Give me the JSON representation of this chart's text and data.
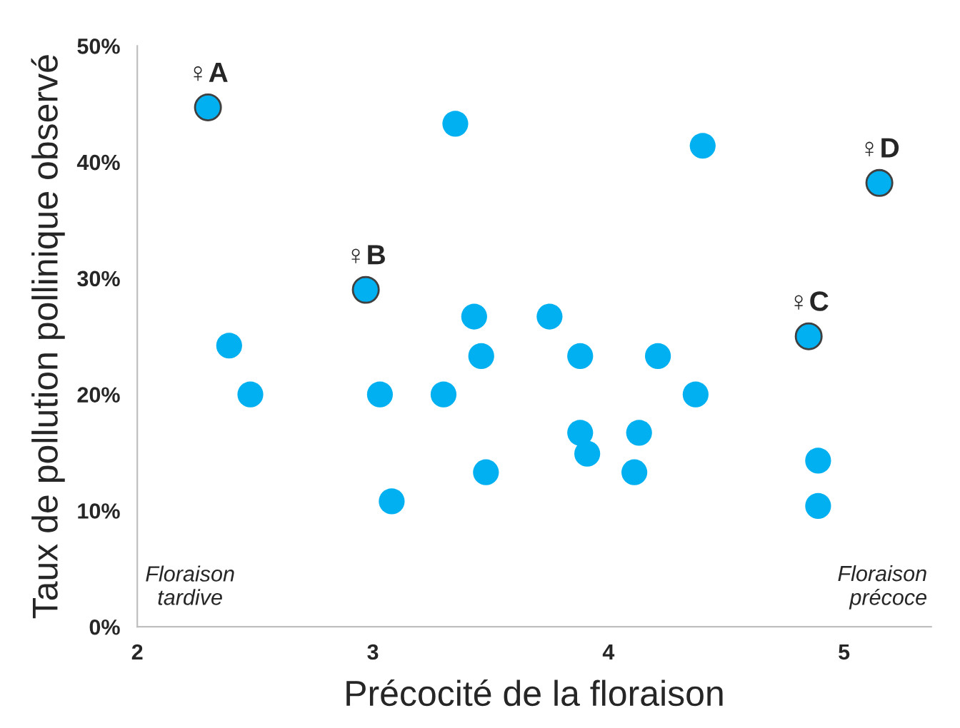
{
  "chart_data": {
    "type": "scatter",
    "xlabel": "Précocité de la floraison",
    "ylabel": "Taux de pollution pollinique observé",
    "xlim": [
      2,
      5.37
    ],
    "ylim": [
      0,
      50
    ],
    "xticks": [
      2,
      3,
      4,
      5
    ],
    "yticks": [
      {
        "value": 0,
        "label": "0%"
      },
      {
        "value": 10,
        "label": "10%"
      },
      {
        "value": 20,
        "label": "20%"
      },
      {
        "value": 30,
        "label": "30%"
      },
      {
        "value": 40,
        "label": "40%"
      },
      {
        "value": 50,
        "label": "50%"
      }
    ],
    "grid": false,
    "marker": "circle",
    "series": [
      {
        "color": "#00b0f0",
        "x": [
          3.35,
          3.43,
          2.39,
          3.46,
          2.48,
          3.03,
          3.3,
          3.48,
          3.08,
          4.4,
          3.75,
          3.88,
          4.21,
          4.37,
          3.88,
          4.13,
          3.91,
          4.11,
          4.89,
          4.89
        ],
        "values": [
          43.3,
          26.7,
          24.2,
          23.3,
          20.0,
          20.0,
          20.0,
          13.3,
          10.8,
          41.4,
          26.7,
          23.3,
          23.3,
          20.0,
          16.7,
          16.7,
          14.9,
          13.3,
          14.3,
          10.4
        ]
      },
      {
        "color": "#00b0f0",
        "x": [
          2.3,
          2.97,
          4.85,
          5.15
        ],
        "values": [
          44.7,
          29.0,
          25.0,
          38.2
        ]
      }
    ],
    "annotations": [
      {
        "text": "♀A",
        "x": 2.3,
        "y": 44.7
      },
      {
        "text": "♀B",
        "x": 2.97,
        "y": 29.0
      },
      {
        "text": "♀C",
        "x": 4.85,
        "y": 25.0
      },
      {
        "text": "♀D",
        "x": 5.15,
        "y": 38.2
      },
      "Floraison\ntardive",
      "Floraison\nprécoce"
    ]
  }
}
